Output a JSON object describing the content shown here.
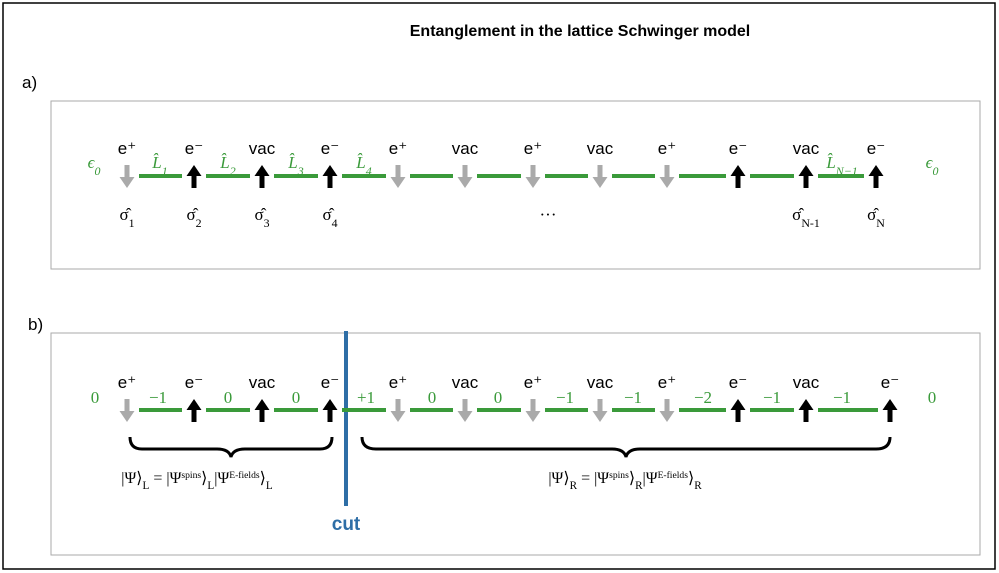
{
  "title": "Entanglement in the lattice Schwinger model",
  "panel_a": {
    "label": "a)",
    "particles": [
      "e⁺",
      "e⁻",
      "vac",
      "e⁻",
      "e⁺",
      "vac",
      "e⁺",
      "vac",
      "e⁺",
      "e⁻",
      "vac",
      "e⁻"
    ],
    "fields": [
      {
        "base": "ϵ",
        "sub": "0"
      },
      {
        "base": "L̂",
        "sub": "1"
      },
      {
        "base": "L̂",
        "sub": "2"
      },
      {
        "base": "L̂",
        "sub": "3"
      },
      {
        "base": "L̂",
        "sub": "4"
      },
      {
        "base": "L̂",
        "sub": "N−1"
      },
      {
        "base": "ϵ",
        "sub": "0"
      }
    ],
    "operators": [
      {
        "base": "σ̂",
        "sub": "1"
      },
      {
        "base": "σ̂",
        "sub": "2"
      },
      {
        "base": "σ̂",
        "sub": "3"
      },
      {
        "base": "σ̂",
        "sub": "4"
      },
      {
        "base": "···"
      },
      {
        "base": "σ̂",
        "sub": "N-1"
      },
      {
        "base": "σ̂",
        "sub": "N"
      }
    ]
  },
  "panel_b": {
    "label": "b)",
    "particles": [
      "e⁺",
      "e⁻",
      "vac",
      "e⁻",
      "e⁺",
      "vac",
      "e⁺",
      "vac",
      "e⁺",
      "e⁻",
      "vac",
      "e⁻"
    ],
    "fields": [
      "0",
      "−1",
      "0",
      "0",
      "+1",
      "0",
      "0",
      "−1",
      "−1",
      "−2",
      "−1",
      "−1",
      "0"
    ],
    "cut": "cut",
    "left_state": [
      {
        "t": "|Ψ⟩"
      },
      {
        "sub": "L"
      },
      {
        "t": " = |Ψ"
      },
      {
        "sup": "spins"
      },
      {
        "t": "⟩"
      },
      {
        "sub": "L"
      },
      {
        "t": "|Ψ"
      },
      {
        "sup": "E-fields"
      },
      {
        "t": "⟩"
      },
      {
        "sub": "L"
      }
    ],
    "right_state": [
      {
        "t": "|Ψ⟩"
      },
      {
        "sub": "R"
      },
      {
        "t": " = |Ψ"
      },
      {
        "sup": "spins"
      },
      {
        "t": "⟩"
      },
      {
        "sub": "R"
      },
      {
        "t": "|Ψ"
      },
      {
        "sup": "E-fields"
      },
      {
        "t": "⟩"
      },
      {
        "sub": "R"
      }
    ]
  }
}
